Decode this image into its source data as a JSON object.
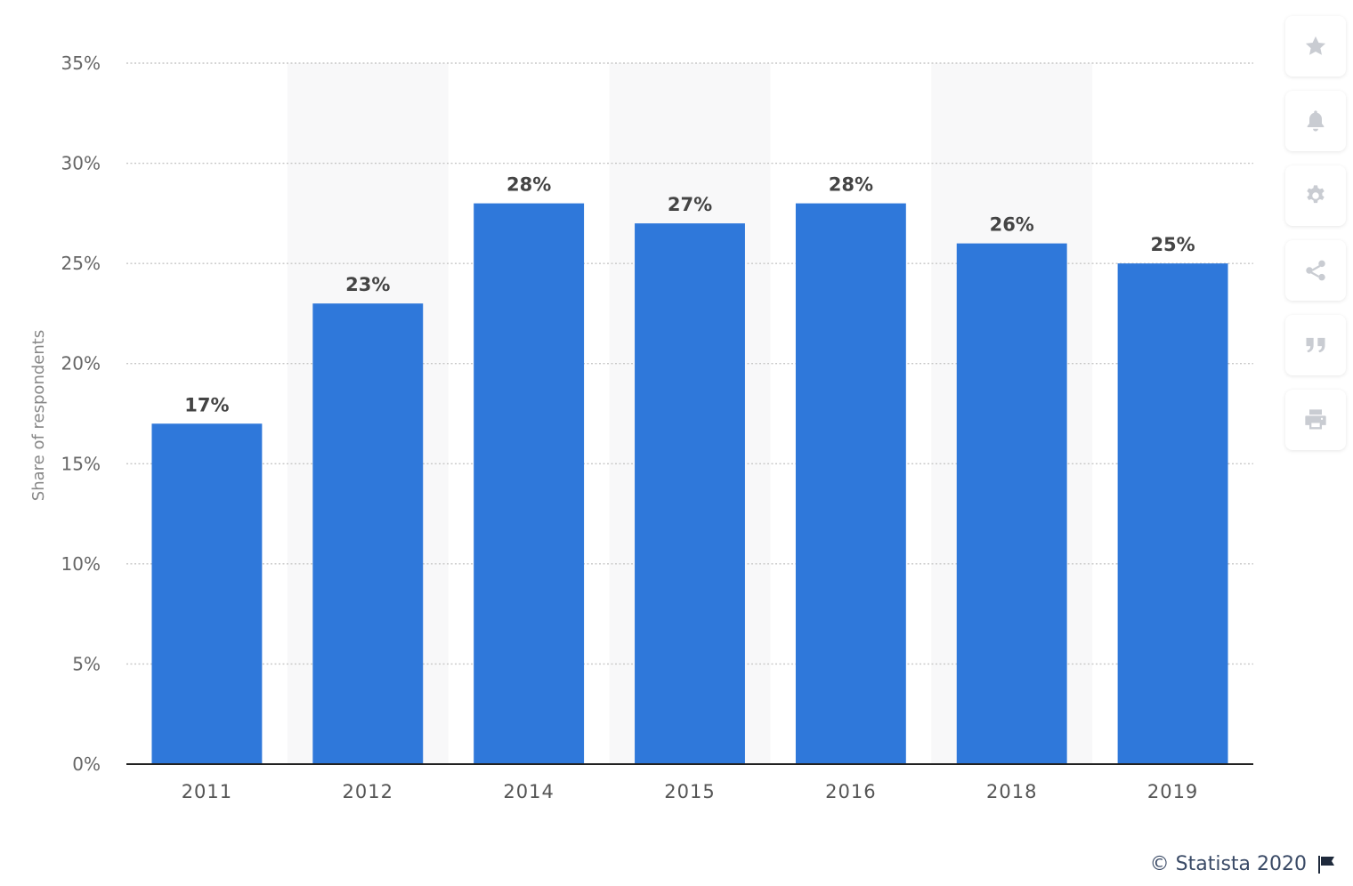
{
  "chart_data": {
    "type": "bar",
    "categories": [
      "2011",
      "2012",
      "2014",
      "2015",
      "2016",
      "2018",
      "2019"
    ],
    "values": [
      17,
      23,
      28,
      27,
      28,
      26,
      25
    ],
    "value_labels": [
      "17%",
      "23%",
      "28%",
      "27%",
      "28%",
      "26%",
      "25%"
    ],
    "ylabel": "Share of respondents",
    "ylim": [
      0,
      35
    ],
    "yticks": [
      0,
      5,
      10,
      15,
      20,
      25,
      30,
      35
    ],
    "ytick_labels": [
      "0%",
      "5%",
      "10%",
      "15%",
      "20%",
      "25%",
      "30%",
      "35%"
    ],
    "grid": true,
    "bar_color": "#2f78da"
  },
  "toolbar": {
    "items": [
      {
        "name": "favorite",
        "icon": "star-icon"
      },
      {
        "name": "notification",
        "icon": "bell-icon"
      },
      {
        "name": "settings",
        "icon": "gear-icon"
      },
      {
        "name": "share",
        "icon": "share-icon"
      },
      {
        "name": "cite",
        "icon": "quote-icon"
      },
      {
        "name": "print",
        "icon": "print-icon"
      }
    ]
  },
  "credit": {
    "text": "© Statista 2020",
    "icon": "flag-icon"
  }
}
